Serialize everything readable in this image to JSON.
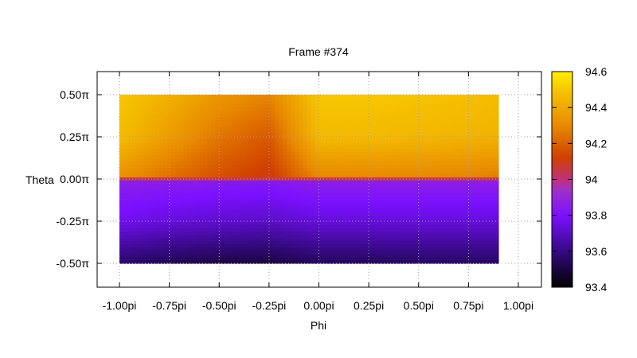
{
  "chart_data": {
    "type": "heatmap",
    "title": "Frame #374",
    "xlabel": "Phi",
    "ylabel": "Theta",
    "xlim": [
      -1.0,
      1.0
    ],
    "ylim": [
      -0.5,
      0.5
    ],
    "x_data_range": [
      -1.0,
      0.9
    ],
    "y_data_range": [
      -0.5,
      0.5
    ],
    "x_ticks": [
      {
        "value": -1.0,
        "label": "-1.00pi"
      },
      {
        "value": -0.75,
        "label": "-0.75pi"
      },
      {
        "value": -0.5,
        "label": "-0.50pi"
      },
      {
        "value": -0.25,
        "label": "-0.25pi"
      },
      {
        "value": 0.0,
        "label": "0.00pi"
      },
      {
        "value": 0.25,
        "label": "0.25pi"
      },
      {
        "value": 0.5,
        "label": "0.50pi"
      },
      {
        "value": 0.75,
        "label": "0.75pi"
      },
      {
        "value": 1.0,
        "label": "1.00pi"
      }
    ],
    "y_ticks": [
      {
        "value": 0.5,
        "label": "0.50π"
      },
      {
        "value": 0.25,
        "label": "0.25π"
      },
      {
        "value": 0.0,
        "label": "0.00π"
      },
      {
        "value": -0.25,
        "label": "-0.25π"
      },
      {
        "value": -0.5,
        "label": "-0.50π"
      }
    ],
    "colorbar": {
      "min": 93.4,
      "max": 94.6,
      "ticks": [
        {
          "value": 94.6,
          "label": "94.6"
        },
        {
          "value": 94.4,
          "label": "94.4"
        },
        {
          "value": 94.2,
          "label": "94.2"
        },
        {
          "value": 94.0,
          "label": "94"
        },
        {
          "value": 93.8,
          "label": "93.8"
        },
        {
          "value": 93.6,
          "label": "93.6"
        },
        {
          "value": 93.4,
          "label": "93.4"
        }
      ],
      "colormap": [
        {
          "v": 0.0,
          "color": "#000000"
        },
        {
          "v": 0.18,
          "color": "#3a0a8c"
        },
        {
          "v": 0.33,
          "color": "#7a10ff"
        },
        {
          "v": 0.45,
          "color": "#a030c8"
        },
        {
          "v": 0.5,
          "color": "#c0307a"
        },
        {
          "v": 0.6,
          "color": "#d04000"
        },
        {
          "v": 0.75,
          "color": "#e88a00"
        },
        {
          "v": 0.9,
          "color": "#f5c000"
        },
        {
          "v": 1.0,
          "color": "#ffee00"
        }
      ]
    },
    "grid": true,
    "grid_values": {
      "phi_columns": [
        -1.0,
        -0.75,
        -0.5,
        -0.25,
        0.0,
        0.25,
        0.5,
        0.75,
        0.9
      ],
      "upper_half": {
        "theta_rows": [
          0.5,
          0.25,
          0.02
        ],
        "values": [
          [
            94.5,
            94.43,
            94.34,
            94.29,
            94.5,
            94.5,
            94.49,
            94.48,
            94.47
          ],
          [
            94.47,
            94.36,
            94.25,
            94.18,
            94.46,
            94.46,
            94.45,
            94.44,
            94.43
          ],
          [
            94.33,
            94.24,
            94.16,
            94.1,
            94.3,
            94.3,
            94.3,
            94.29,
            94.28
          ]
        ]
      },
      "lower_half": {
        "theta_rows": [
          -0.02,
          -0.25,
          -0.5
        ],
        "values": [
          [
            93.86,
            93.85,
            93.84,
            93.83,
            93.86,
            93.86,
            93.86,
            93.86,
            93.86
          ],
          [
            93.77,
            93.74,
            93.72,
            93.71,
            93.74,
            93.74,
            93.74,
            93.74,
            93.74
          ],
          [
            93.56,
            93.53,
            93.51,
            93.5,
            93.54,
            93.54,
            93.55,
            93.55,
            93.55
          ]
        ]
      },
      "seam_value": 94.05
    }
  }
}
